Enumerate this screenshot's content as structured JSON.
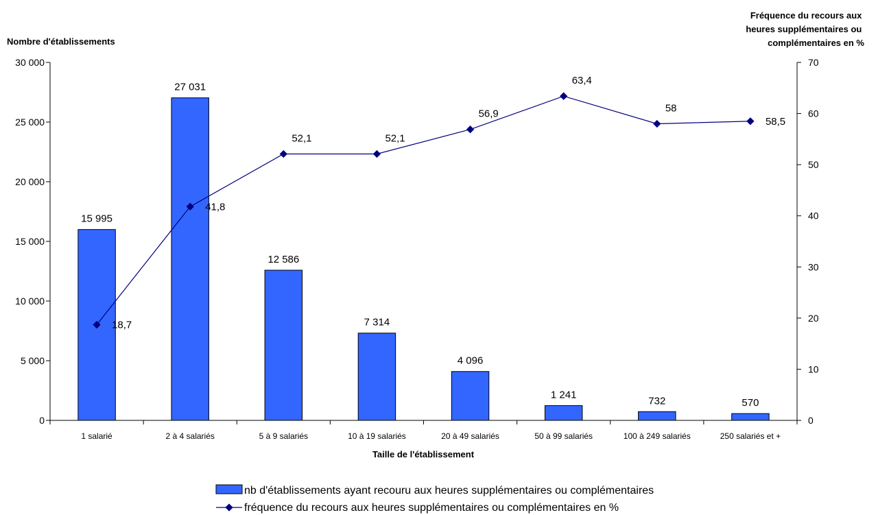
{
  "chart_data": {
    "type": "bar+line",
    "categories": [
      "1 salarié",
      "2 à 4 salariés",
      "5 à 9 salariés",
      "10 à 19 salariés",
      "20 à 49 salariés",
      "50 à 99 salariés",
      "100 à 249 salariés",
      "250 salariés et +"
    ],
    "series": [
      {
        "name": "nb d'établissements ayant recouru aux heures supplémentaires ou complémentaires",
        "type": "bar",
        "axis": "left",
        "values": [
          15995,
          27031,
          12586,
          7314,
          4096,
          1241,
          732,
          570
        ],
        "labels": [
          "15 995",
          "27 031",
          "12 586",
          "7 314",
          "4 096",
          "1 241",
          "732",
          "570"
        ],
        "color": "#3366FF"
      },
      {
        "name": "fréquence du recours aux heures supplémentaires ou complémentaires en %",
        "type": "line",
        "axis": "right",
        "values": [
          18.7,
          41.8,
          52.1,
          52.1,
          56.9,
          63.4,
          58,
          58.5
        ],
        "labels": [
          "18,7",
          "41,8",
          "52,1",
          "52,1",
          "56,9",
          "63,4",
          "58",
          "58,5"
        ],
        "color": "#000080"
      }
    ],
    "xlabel": "Taille de l'établissement",
    "ylabel_left": "Nombre d'établissements",
    "ylabel_right_lines": [
      "Fréquence du recours aux",
      "heures supplémentaires ou",
      "complémentaires en %"
    ],
    "ylim_left": [
      0,
      30000
    ],
    "yticks_left": [
      "0",
      "5 000",
      "10 000",
      "15 000",
      "20 000",
      "25 000",
      "30 000"
    ],
    "ylim_right": [
      0,
      70
    ],
    "yticks_right": [
      "0",
      "10",
      "20",
      "30",
      "40",
      "50",
      "60",
      "70"
    ],
    "grid": false,
    "legend_position": "bottom"
  }
}
